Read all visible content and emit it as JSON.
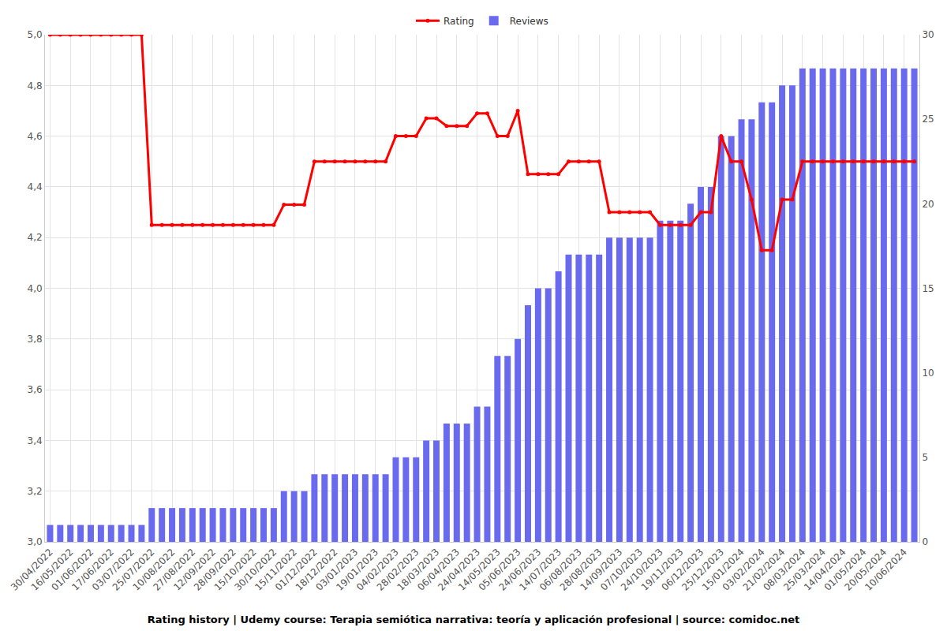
{
  "chart_data": {
    "type": "bar",
    "title": "Rating history | Udemy course: Terapia semiótica narrativa: teoría y aplicación profesional | source: comidoc.net",
    "categories": [
      "30/04/2022",
      null,
      "16/05/2022",
      null,
      "01/06/2022",
      null,
      "17/06/2022",
      null,
      "03/07/2022",
      null,
      "25/07/2022",
      null,
      "10/08/2022",
      null,
      "27/08/2022",
      null,
      "12/09/2022",
      null,
      "28/09/2022",
      null,
      "15/10/2022",
      null,
      "30/10/2022",
      null,
      "15/11/2022",
      null,
      "01/12/2022",
      null,
      "18/12/2022",
      null,
      "03/01/2023",
      null,
      "19/01/2023",
      null,
      "04/02/2023",
      null,
      "28/02/2023",
      null,
      "18/03/2023",
      null,
      "06/04/2023",
      null,
      "24/04/2023",
      null,
      "14/05/2023",
      null,
      "05/06/2023",
      null,
      "24/06/2023",
      null,
      "14/07/2023",
      null,
      "06/08/2023",
      null,
      "28/08/2023",
      null,
      "14/09/2023",
      null,
      "07/10/2023",
      null,
      "24/10/2023",
      null,
      "19/11/2023",
      null,
      "06/12/2023",
      null,
      "25/12/2023",
      null,
      "15/01/2024",
      null,
      "03/02/2024",
      null,
      "21/02/2024",
      null,
      "08/03/2024",
      null,
      "25/03/2024",
      null,
      "14/04/2024",
      null,
      "01/05/2024",
      null,
      "20/05/2024",
      null,
      "10/06/2024",
      null
    ],
    "series": [
      {
        "name": "Reviews",
        "type": "bar",
        "axis": "y2",
        "color": "#6a6aef",
        "values": [
          1,
          1,
          1,
          1,
          1,
          1,
          1,
          1,
          1,
          1,
          2,
          2,
          2,
          2,
          2,
          2,
          2,
          2,
          2,
          2,
          2,
          2,
          2,
          3,
          3,
          3,
          4,
          4,
          4,
          4,
          4,
          4,
          4,
          4,
          5,
          5,
          5,
          6,
          6,
          7,
          7,
          7,
          8,
          8,
          11,
          11,
          12,
          14,
          15,
          15,
          16,
          17,
          17,
          17,
          17,
          18,
          18,
          18,
          18,
          18,
          19,
          19,
          19,
          20,
          21,
          21,
          24,
          24,
          25,
          25,
          26,
          26,
          27,
          27,
          28,
          28,
          28,
          28,
          28,
          28,
          28,
          28,
          28,
          28,
          28,
          28
        ]
      },
      {
        "name": "Rating",
        "type": "line",
        "color": "#ff0000",
        "marker": "circle",
        "line_style": "solid",
        "values": [
          5,
          5,
          5,
          5,
          5,
          5,
          5,
          5,
          5,
          5,
          4.25,
          4.25,
          4.25,
          4.25,
          4.25,
          4.25,
          4.25,
          4.25,
          4.25,
          4.25,
          4.25,
          4.25,
          4.25,
          4.33,
          4.33,
          4.33,
          4.5,
          4.5,
          4.5,
          4.5,
          4.5,
          4.5,
          4.5,
          4.5,
          4.6,
          4.6,
          4.6,
          4.67,
          4.67,
          4.64,
          4.64,
          4.64,
          4.69,
          4.69,
          4.6,
          4.6,
          4.7,
          4.45,
          4.45,
          4.45,
          4.45,
          4.5,
          4.5,
          4.5,
          4.5,
          4.3,
          4.3,
          4.3,
          4.3,
          4.3,
          4.25,
          4.25,
          4.25,
          4.25,
          4.3,
          4.3,
          4.6,
          4.5,
          4.5,
          4.35,
          4.15,
          4.15,
          4.35,
          4.35,
          4.5,
          4.5,
          4.5,
          4.5,
          4.5,
          4.5,
          4.5,
          4.5,
          4.5,
          4.5,
          4.5,
          4.5
        ]
      }
    ],
    "ylim": [
      3.0,
      5.0
    ],
    "yticks": [
      {
        "value": 3.0,
        "label": "3,0"
      },
      {
        "value": 3.2,
        "label": "3,2"
      },
      {
        "value": 3.4,
        "label": "3,4"
      },
      {
        "value": 3.6,
        "label": "3,6"
      },
      {
        "value": 3.8,
        "label": "3,8"
      },
      {
        "value": 4.0,
        "label": "4,0"
      },
      {
        "value": 4.2,
        "label": "4,2"
      },
      {
        "value": 4.4,
        "label": "4,4"
      },
      {
        "value": 4.6,
        "label": "4,6"
      },
      {
        "value": 4.8,
        "label": "4,8"
      },
      {
        "value": 5.0,
        "label": "5,0"
      }
    ],
    "y2lim": [
      0,
      30
    ],
    "y2ticks": [
      0,
      5,
      10,
      15,
      20,
      25,
      30
    ],
    "grid": true,
    "legend": "top"
  }
}
